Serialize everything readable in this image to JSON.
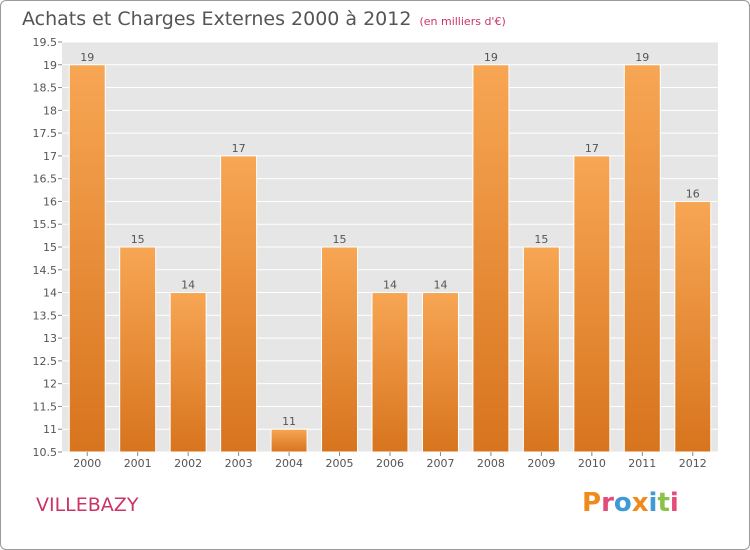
{
  "header": {
    "title": "Achats et Charges Externes 2000 à 2012",
    "subtitle": "(en milliers d'€)"
  },
  "footer": {
    "commune": "VILLEBAZY",
    "logo": "Proxiti"
  },
  "colors": {
    "bar_light": "#f7a654",
    "bar_dark": "#d8741e",
    "plot_bg": "#e6e6e6",
    "grid": "#ffffff",
    "title": "#555555",
    "accent": "#cc3366",
    "logo_letters": [
      "#f08a1c",
      "#e24b7a",
      "#3f9ad6",
      "#f08a1c",
      "#3f9ad6",
      "#8bc34a",
      "#e24b7a"
    ]
  },
  "chart_data": {
    "type": "bar",
    "title": "Achats et Charges Externes 2000 à 2012",
    "subtitle": "(en milliers d'€)",
    "categories": [
      "2000",
      "2001",
      "2002",
      "2003",
      "2004",
      "2005",
      "2006",
      "2007",
      "2008",
      "2009",
      "2010",
      "2011",
      "2012"
    ],
    "values": [
      19,
      15,
      14,
      17,
      11,
      15,
      14,
      14,
      19,
      15,
      17,
      19,
      16
    ],
    "ylim": [
      10.5,
      19.5
    ],
    "yticks": [
      "10.5",
      "11",
      "11.5",
      "12",
      "12.5",
      "13",
      "13.5",
      "14",
      "14.5",
      "15",
      "15.5",
      "16",
      "16.5",
      "17",
      "17.5",
      "18",
      "18.5",
      "19",
      "19.5"
    ],
    "xlabel": "",
    "ylabel": "",
    "grid": true,
    "data_labels": true
  }
}
